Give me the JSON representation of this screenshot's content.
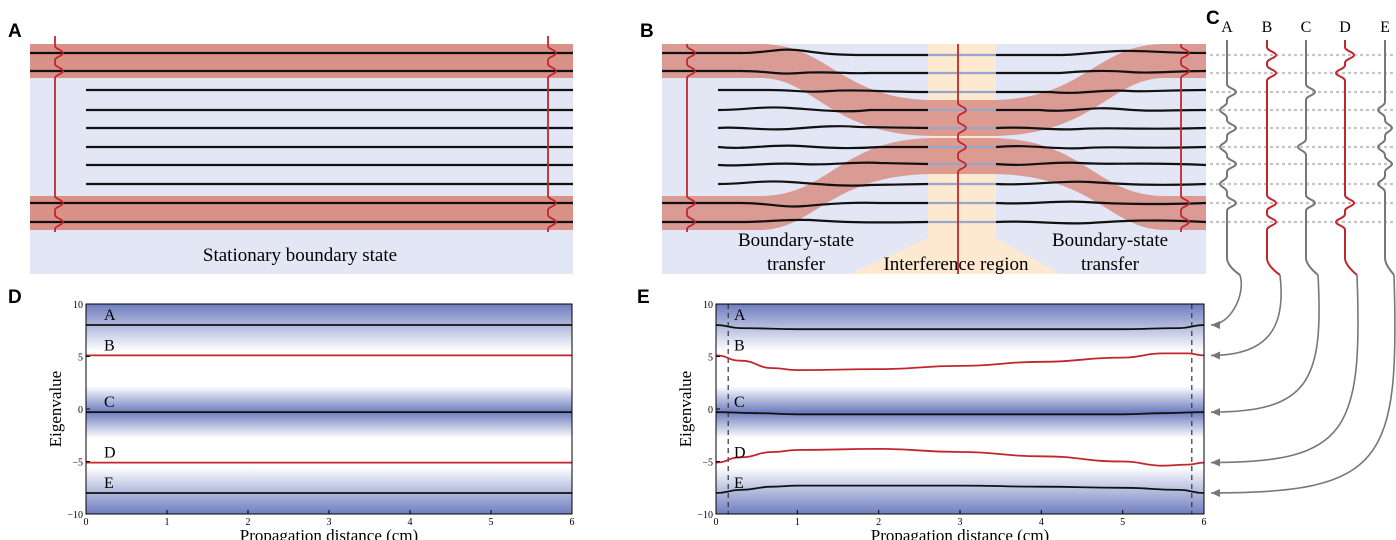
{
  "panel_letters": {
    "a": "A",
    "b": "B",
    "c": "C",
    "d": "D",
    "e": "E"
  },
  "panel_a": {
    "caption": "Stationary boundary state"
  },
  "panel_b": {
    "left_caption_1": "Boundary-state",
    "left_caption_2": "transfer",
    "center_caption": "Interference region",
    "right_caption_1": "Boundary-state",
    "right_caption_2": "transfer"
  },
  "panel_c": {
    "mode_labels": [
      "A",
      "B",
      "C",
      "D",
      "E"
    ]
  },
  "colors": {
    "background_blue": "#e3e7f5",
    "boundary_band": "#d99188",
    "interference": "#fde9d0",
    "boundary_mode": "#c0272d",
    "bulk_mode": "#777777",
    "waveguide": "#111111"
  },
  "chart_data": [
    {
      "type": "line",
      "panel": "D",
      "xlabel": "Propagation distance (cm)",
      "ylabel": "Eigenvalue",
      "xlim": [
        0,
        6
      ],
      "ylim": [
        -10,
        10
      ],
      "xticks": [
        "0",
        "1",
        "2",
        "3",
        "4",
        "5",
        "6"
      ],
      "yticks": [
        "10",
        "5",
        "0",
        "-5",
        "-10"
      ],
      "series": [
        {
          "name": "A",
          "color": "#111111",
          "x": [
            0,
            6
          ],
          "y": [
            8.0,
            8.0
          ]
        },
        {
          "name": "B",
          "color": "#c0272d",
          "x": [
            0,
            6
          ],
          "y": [
            5.1,
            5.1
          ]
        },
        {
          "name": "C",
          "color": "#111111",
          "x": [
            0,
            6
          ],
          "y": [
            -0.3,
            -0.3
          ]
        },
        {
          "name": "D",
          "color": "#c0272d",
          "x": [
            0,
            6
          ],
          "y": [
            -5.1,
            -5.1
          ]
        },
        {
          "name": "E",
          "color": "#111111",
          "x": [
            0,
            6
          ],
          "y": [
            -8.0,
            -8.0
          ]
        }
      ]
    },
    {
      "type": "line",
      "panel": "E",
      "xlabel": "Propagation distance (cm)",
      "ylabel": "Eigenvalue",
      "xlim": [
        0,
        6
      ],
      "ylim": [
        -10,
        10
      ],
      "xticks": [
        "0",
        "1",
        "2",
        "3",
        "4",
        "5",
        "6"
      ],
      "yticks": [
        "10",
        "5",
        "0",
        "-5",
        "-10"
      ],
      "dashed_x": [
        0.15,
        5.85
      ],
      "series": [
        {
          "name": "A",
          "color": "#111111",
          "x": [
            0,
            0.3,
            1,
            2,
            3,
            4,
            5,
            5.7,
            6
          ],
          "y": [
            8.0,
            7.7,
            7.6,
            7.6,
            7.6,
            7.6,
            7.6,
            7.7,
            8.0
          ]
        },
        {
          "name": "B",
          "color": "#c0272d",
          "x": [
            0,
            0.3,
            0.7,
            1,
            2,
            3,
            4,
            5,
            5.5,
            5.8,
            6
          ],
          "y": [
            5.1,
            4.6,
            3.9,
            3.7,
            3.8,
            4.1,
            4.5,
            4.9,
            5.3,
            5.3,
            5.1
          ]
        },
        {
          "name": "C",
          "color": "#111111",
          "x": [
            0,
            0.5,
            1,
            2,
            3,
            4,
            5,
            5.5,
            6
          ],
          "y": [
            -0.3,
            -0.4,
            -0.5,
            -0.5,
            -0.5,
            -0.5,
            -0.5,
            -0.4,
            -0.3
          ]
        },
        {
          "name": "D",
          "color": "#c0272d",
          "x": [
            0,
            0.3,
            0.7,
            1,
            2,
            3,
            4,
            5,
            5.5,
            5.8,
            6
          ],
          "y": [
            -5.1,
            -4.6,
            -4.1,
            -3.9,
            -3.8,
            -4.1,
            -4.5,
            -5.0,
            -5.4,
            -5.3,
            -5.1
          ]
        },
        {
          "name": "E",
          "color": "#111111",
          "x": [
            0,
            0.3,
            0.7,
            1,
            2,
            3,
            4,
            5,
            5.7,
            6
          ],
          "y": [
            -8.0,
            -7.7,
            -7.4,
            -7.3,
            -7.3,
            -7.3,
            -7.4,
            -7.5,
            -7.7,
            -8.0
          ]
        }
      ]
    }
  ]
}
